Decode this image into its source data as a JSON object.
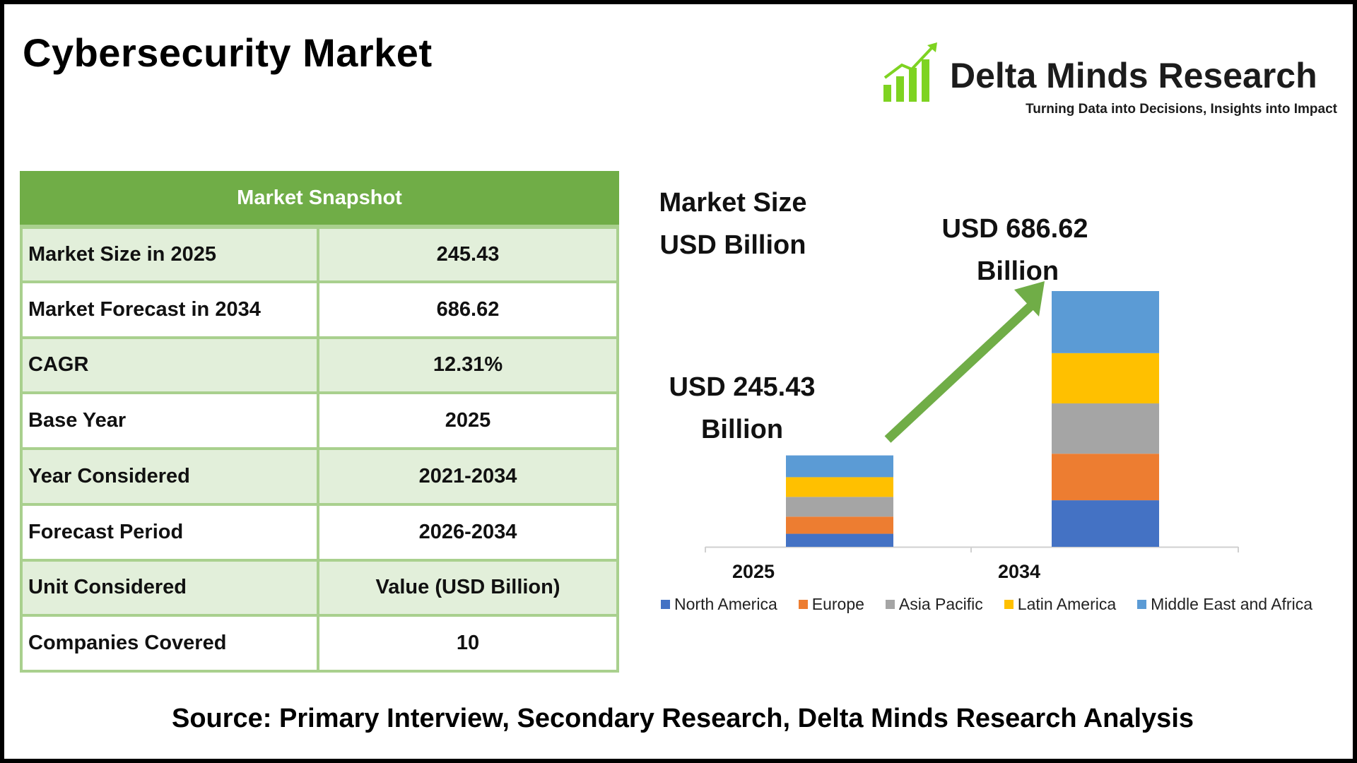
{
  "title": "Cybersecurity Market",
  "brand": {
    "name": "Delta Minds Research",
    "tagline": "Turning Data into Decisions, Insights into Impact",
    "logo_icon": "growth-bars-arrow-icon",
    "logo_color": "#7ed321"
  },
  "snapshot": {
    "heading": "Market Snapshot",
    "header_color": "#70ad47",
    "rows": [
      {
        "label": "Market Size in 2025",
        "value": "245.43",
        "shaded": true
      },
      {
        "label": "Market Forecast in 2034",
        "value": "686.62",
        "shaded": false
      },
      {
        "label": "CAGR",
        "value": "12.31%",
        "shaded": true
      },
      {
        "label": "Base Year",
        "value": "2025",
        "shaded": false
      },
      {
        "label": "Year Considered",
        "value": "2021-2034",
        "shaded": true
      },
      {
        "label": "Forecast Period",
        "value": "2026-2034",
        "shaded": false
      },
      {
        "label": "Unit Considered",
        "value": "Value (USD Billion)",
        "shaded": true
      },
      {
        "label": "Companies Covered",
        "value": "10",
        "shaded": false
      }
    ]
  },
  "market_heading": {
    "line1": "Market Size",
    "line2": "USD Billion"
  },
  "bar_labels": [
    {
      "line1": "USD 245.43",
      "line2": "Billion"
    },
    {
      "line1": "USD 686.62",
      "line2": "Billion"
    }
  ],
  "arrow_color": "#70ad47",
  "chart_data": {
    "type": "bar",
    "stacked": true,
    "categories": [
      "2025",
      "2034"
    ],
    "totals": [
      245.43,
      686.62
    ],
    "series": [
      {
        "name": "North America",
        "color": "#4472c4",
        "values": [
          35,
          125
        ]
      },
      {
        "name": "Europe",
        "color": "#ed7d31",
        "values": [
          46,
          125
        ]
      },
      {
        "name": "Asia Pacific",
        "color": "#a5a5a5",
        "values": [
          53,
          135
        ]
      },
      {
        "name": "Latin America",
        "color": "#ffc000",
        "values": [
          53,
          135
        ]
      },
      {
        "name": "Middle East and Africa",
        "color": "#5b9bd5",
        "values": [
          58.43,
          166.62
        ]
      }
    ],
    "ylim": [
      0,
      686.62
    ],
    "grid": false,
    "legend_position": "bottom"
  },
  "source": "Source: Primary Interview, Secondary Research, Delta Minds Research Analysis"
}
